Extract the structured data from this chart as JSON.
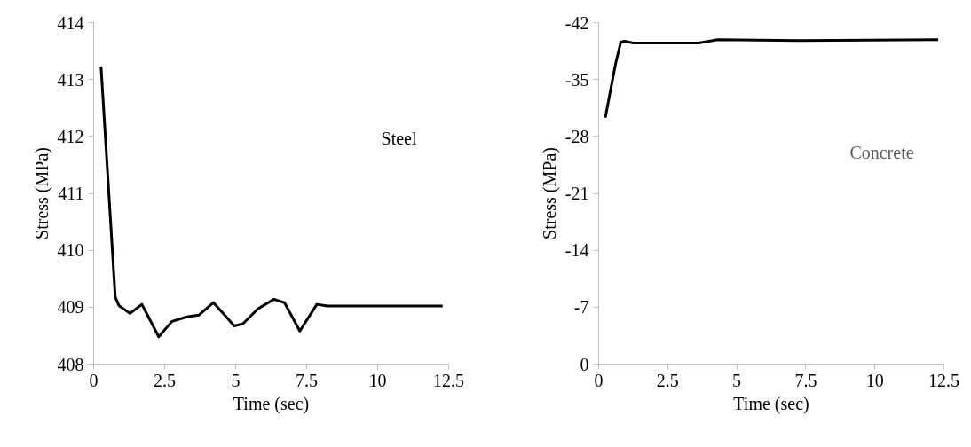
{
  "chart_data": [
    {
      "type": "line",
      "xlabel": "Time (sec)",
      "ylabel": "Stress (MPa)",
      "annotations": [
        "Steel"
      ],
      "xlim": [
        0,
        12.5
      ],
      "ylim": [
        408,
        414
      ],
      "xticks": [
        0,
        2.5,
        5,
        7.5,
        10,
        12.5
      ],
      "yticks": [
        408,
        409,
        410,
        411,
        412,
        413,
        414
      ],
      "grid": false,
      "series": [
        {
          "color": "#000000",
          "x": [
            0.26,
            0.76,
            0.89,
            1.28,
            1.7,
            2.29,
            2.76,
            3.28,
            3.7,
            4.22,
            4.95,
            5.26,
            5.78,
            6.35,
            6.72,
            7.26,
            7.86,
            8.23,
            12.29
          ],
          "values": [
            413.23,
            409.18,
            409.03,
            408.89,
            409.05,
            408.48,
            408.75,
            408.83,
            408.86,
            409.08,
            408.67,
            408.71,
            408.97,
            409.14,
            409.08,
            408.58,
            409.05,
            409.02,
            409.02
          ]
        }
      ]
    },
    {
      "type": "line",
      "xlabel": "Time (sec)",
      "ylabel": "Stress (MPa)",
      "annotations": [
        "Concrete"
      ],
      "xlim": [
        0,
        12.5
      ],
      "ylim": [
        0,
        -42
      ],
      "xticks": [
        0,
        2.5,
        5,
        7.5,
        10,
        12.5
      ],
      "yticks": [
        0,
        -7,
        -14,
        -21,
        -28,
        -35,
        -42
      ],
      "grid": false,
      "series": [
        {
          "color": "#000000",
          "x": [
            0.24,
            0.61,
            0.8,
            0.93,
            1.26,
            3.62,
            4.31,
            7.27,
            12.29
          ],
          "values": [
            -30.3,
            -36.9,
            -39.6,
            -39.7,
            -39.5,
            -39.5,
            -39.9,
            -39.8,
            -39.9
          ]
        }
      ]
    }
  ]
}
